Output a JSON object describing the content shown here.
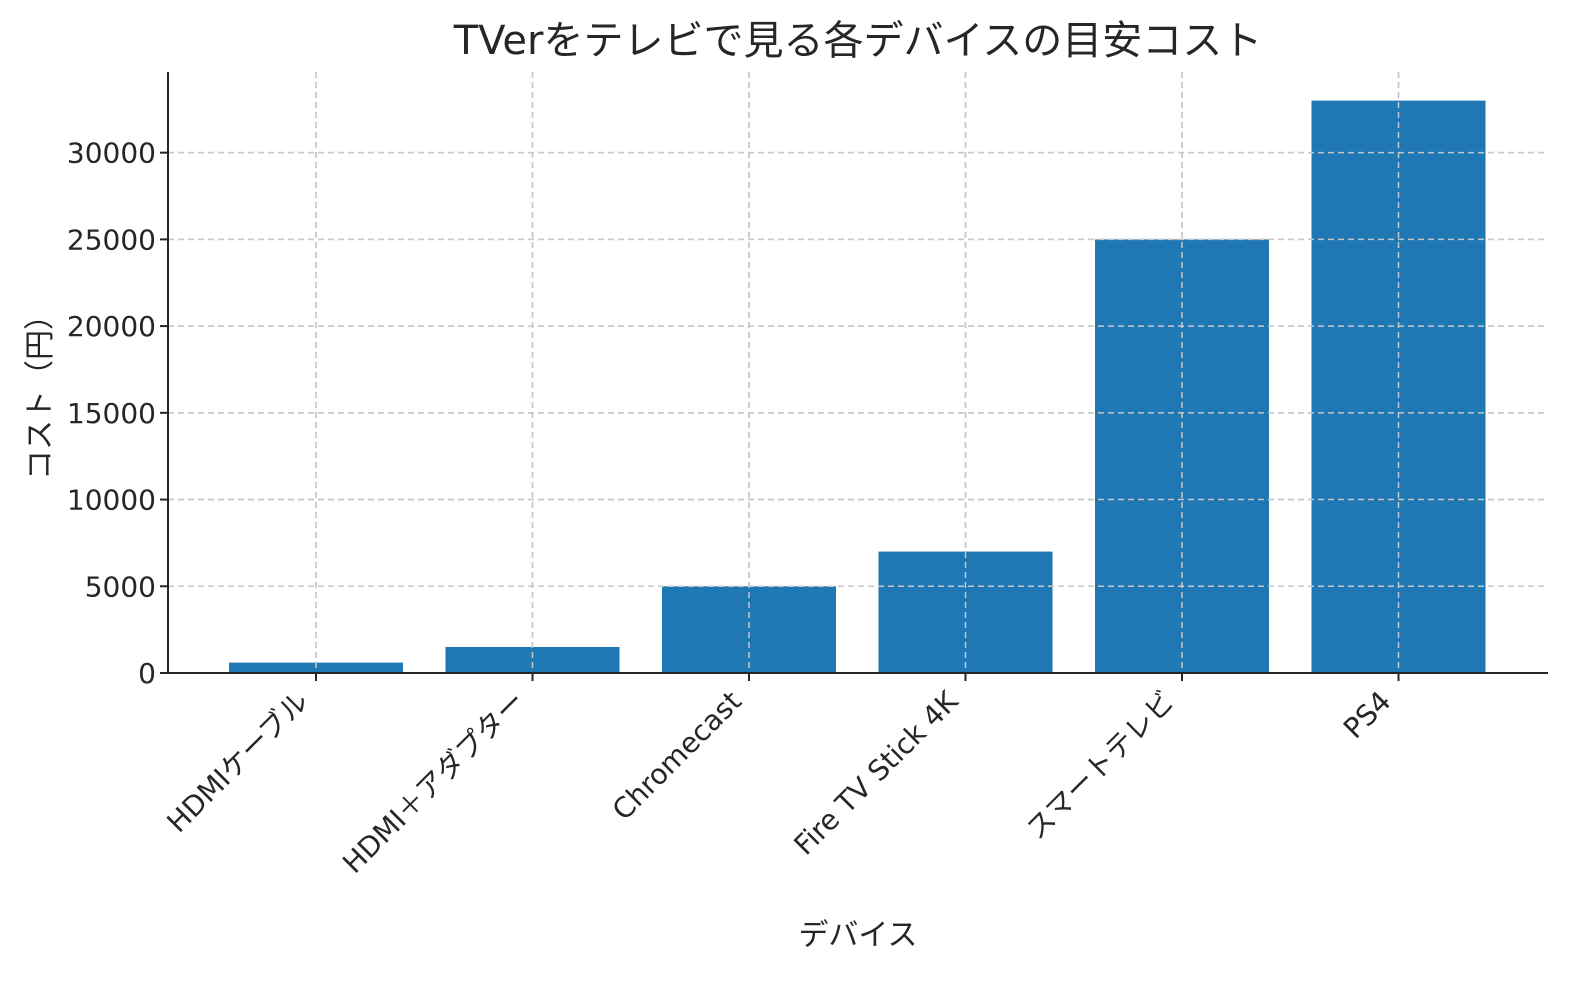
{
  "chart_data": {
    "type": "bar",
    "title": "TVerをテレビで見る各デバイスの目安コスト",
    "xlabel": "デバイス",
    "ylabel": "コスト（円）",
    "categories": [
      "HDMIケーブル",
      "HDMI＋アダプター",
      "Chromecast",
      "Fire TV Stick 4K",
      "スマートテレビ",
      "PS4"
    ],
    "values": [
      600,
      1500,
      5000,
      7000,
      25000,
      33000
    ],
    "ylim": [
      0,
      34650
    ],
    "yticks": [
      0,
      5000,
      10000,
      15000,
      20000,
      25000,
      30000
    ],
    "grid": true,
    "bar_color": "#1f77b4",
    "xtick_rotation": 45
  }
}
